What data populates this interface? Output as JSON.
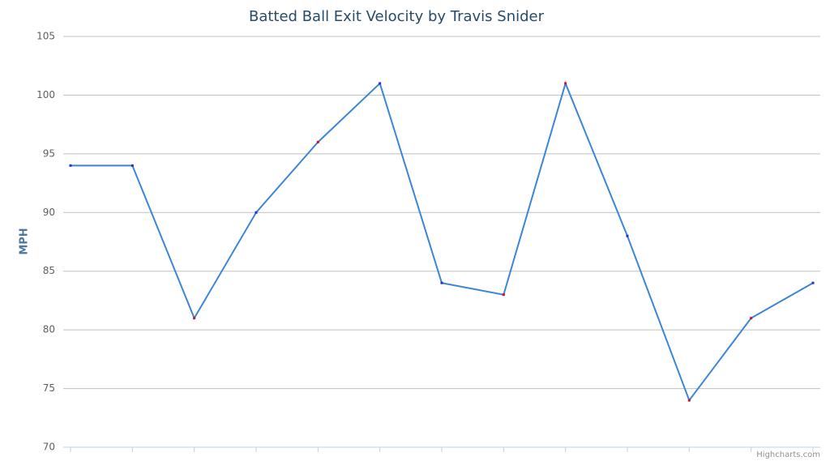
{
  "chart_data": {
    "type": "line",
    "title": "Batted Ball Exit Velocity by Travis Snider",
    "y_label": "MPH",
    "categories": [
      null,
      null,
      null,
      null,
      null,
      null,
      null,
      null,
      null,
      null,
      null,
      null,
      null
    ],
    "series": [
      {
        "color": "#3d85d8",
        "values": [
          94,
          94,
          81,
          90,
          96,
          101,
          84,
          83,
          101,
          88,
          74,
          81,
          84
        ],
        "marker_colors": [
          "#2233cc",
          "#2233cc",
          "#cc1133",
          "#2233cc",
          "#cc1133",
          "#2233cc",
          "#2233cc",
          "#cc1133",
          "#cc1133",
          "#2233cc",
          "#cc1133",
          "#cc1133",
          "#2233cc"
        ]
      }
    ],
    "ylim": [
      70,
      105
    ],
    "yticks": [
      70,
      75,
      80,
      85,
      90,
      95,
      100,
      105
    ],
    "grid": true,
    "credits": "Highcharts.com"
  }
}
